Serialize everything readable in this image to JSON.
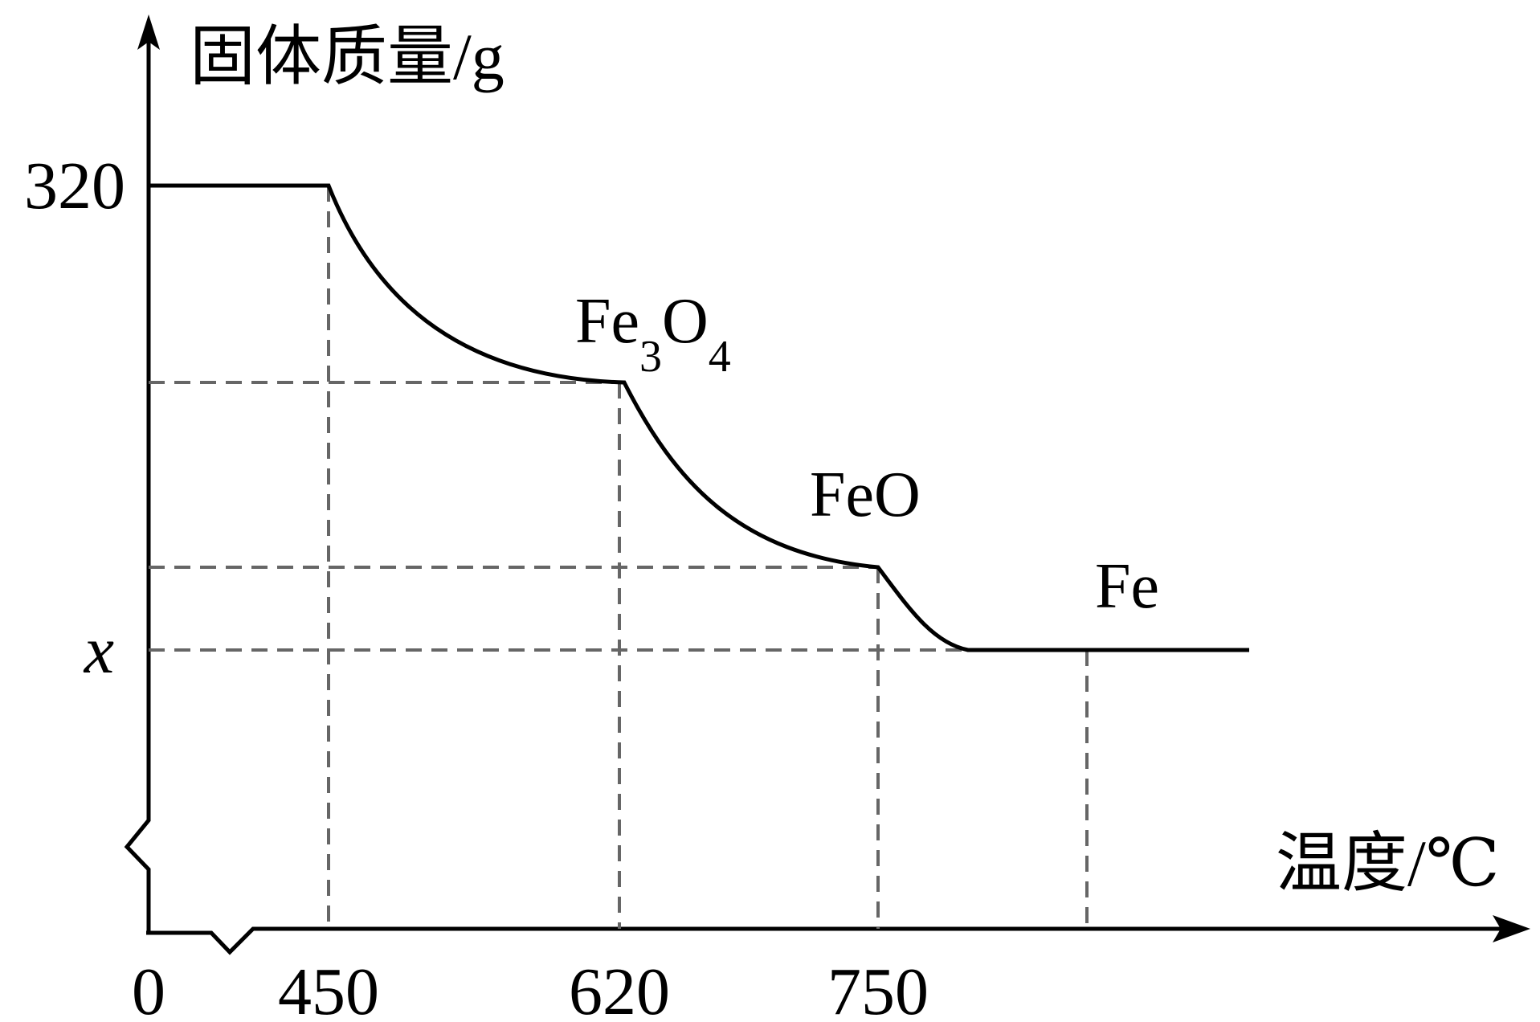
{
  "chart_data": {
    "type": "line",
    "ylabel": "固体质量/g",
    "xlabel": "温度/℃",
    "origin_label": "0",
    "x_ticks": [
      "450",
      "620",
      "750"
    ],
    "y_ticks": [
      "320",
      "x"
    ],
    "series": [
      {
        "points": [
          {
            "x": 0,
            "y": 320
          },
          {
            "x": 450,
            "y": 320
          },
          {
            "x": 620,
            "y": 232
          },
          {
            "x": 750,
            "y": 195
          },
          {
            "x": 830,
            "y": 160
          },
          {
            "x": 1000,
            "y": 160
          }
        ]
      }
    ],
    "annotations": [
      {
        "text": "Fe",
        "sub1": "3",
        "mid": "O",
        "sub2": "4"
      },
      {
        "text": "FeO"
      },
      {
        "text": "Fe"
      }
    ],
    "grid": false,
    "axis_break": true
  }
}
